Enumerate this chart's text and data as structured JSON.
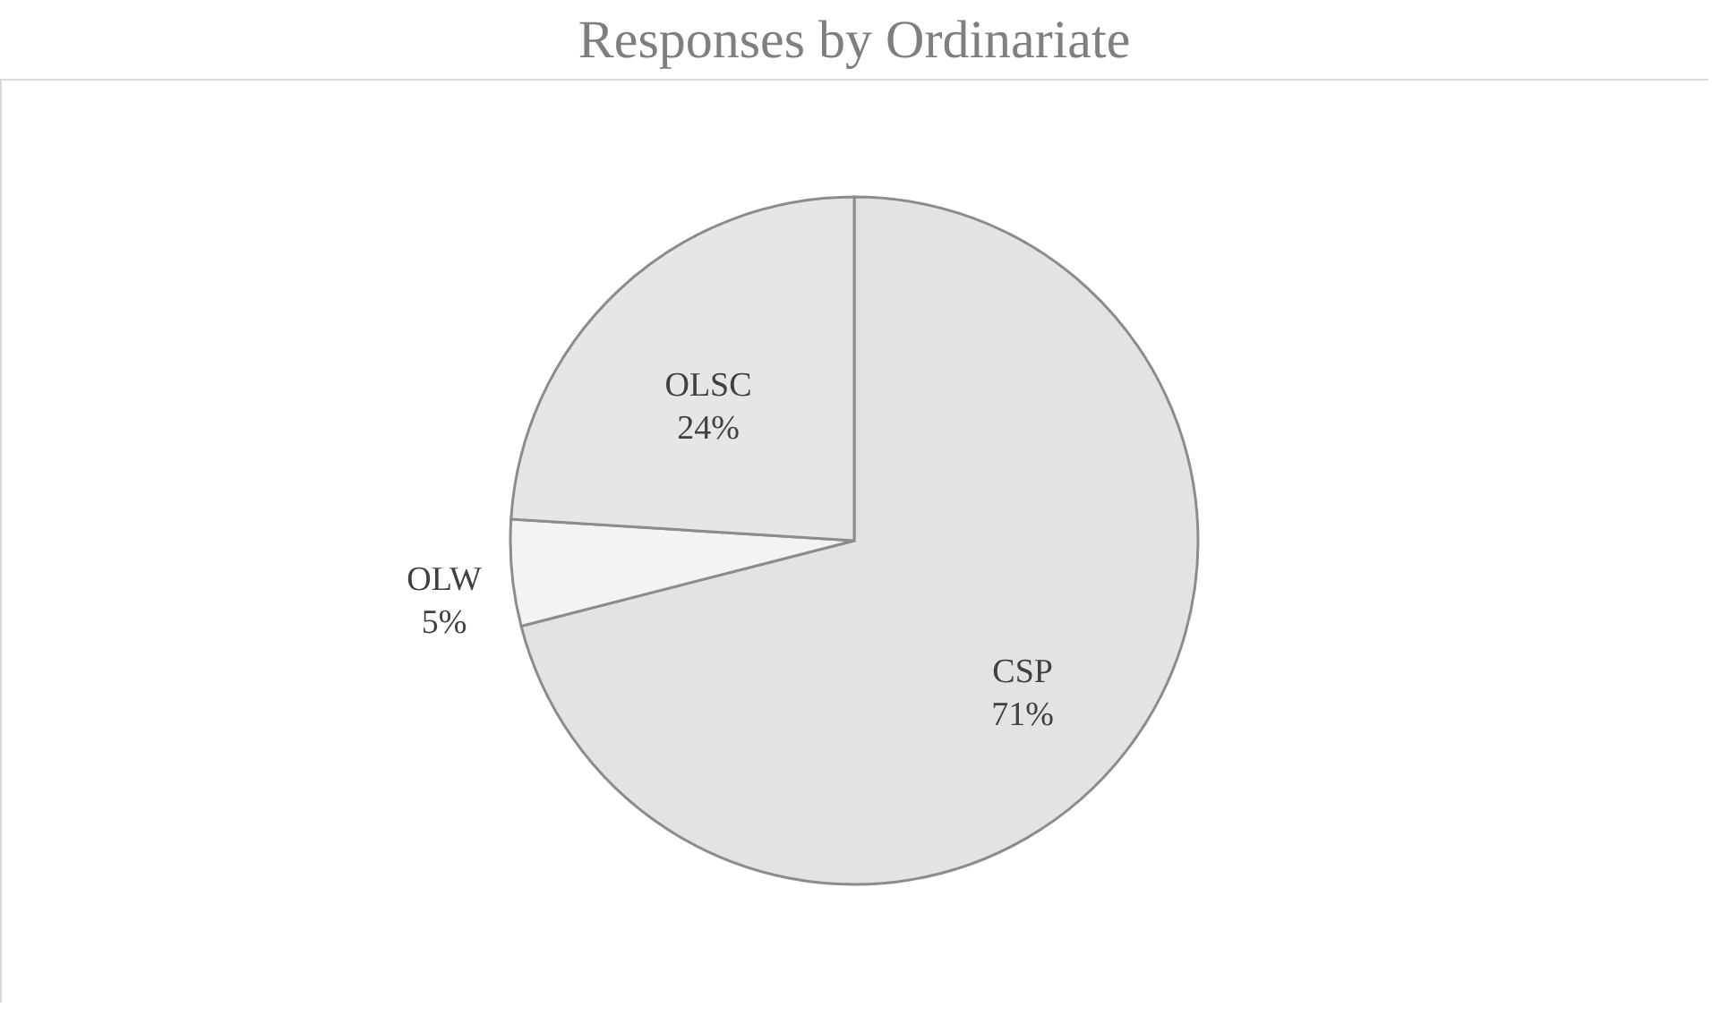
{
  "chart_data": {
    "type": "pie",
    "title": "Responses by Ordinariate",
    "categories": [
      "CSP",
      "OLW",
      "OLSC"
    ],
    "values": [
      71,
      5,
      24
    ],
    "value_labels": [
      "71%",
      "5%",
      "24%"
    ],
    "colors": [
      "#e3e3e3",
      "#f3f3f3",
      "#e6e6e6"
    ],
    "legend": false
  }
}
